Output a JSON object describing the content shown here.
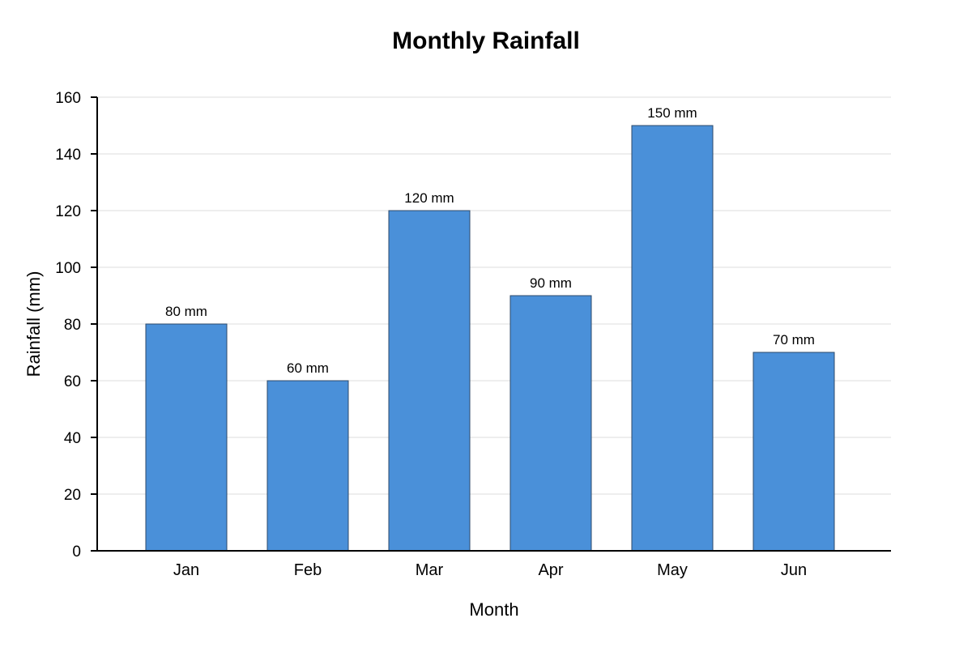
{
  "chart_data": {
    "type": "bar",
    "title": "Monthly Rainfall",
    "xlabel": "Month",
    "ylabel": "Rainfall (mm)",
    "categories": [
      "Jan",
      "Feb",
      "Mar",
      "Apr",
      "May",
      "Jun"
    ],
    "values": [
      80,
      60,
      120,
      90,
      150,
      70
    ],
    "data_labels": [
      "80 mm",
      "60 mm",
      "120 mm",
      "90 mm",
      "150 mm",
      "70 mm"
    ],
    "ylim": [
      0,
      160
    ],
    "yticks": [
      0,
      20,
      40,
      60,
      80,
      100,
      120,
      140,
      160
    ],
    "grid": true,
    "legend": "none",
    "colors": {
      "bar_fill": "#4a90d9",
      "bar_stroke": "#2c4a6a"
    }
  }
}
